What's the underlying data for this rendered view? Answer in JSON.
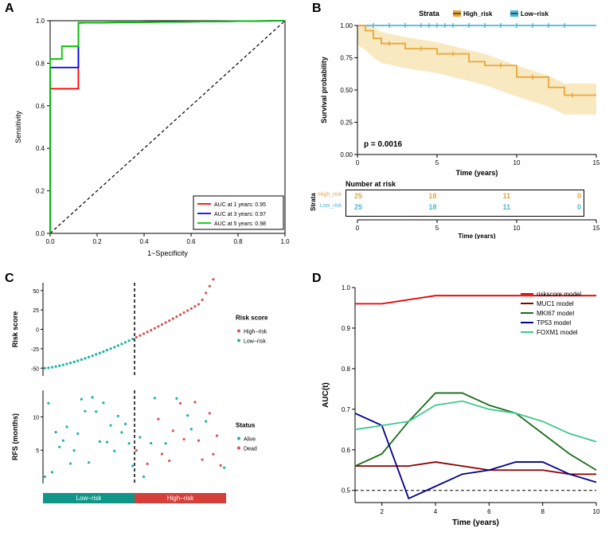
{
  "panelA": {
    "label": "A",
    "type": "roc",
    "xlabel": "1−Specificity",
    "ylabel": "Sensitivity",
    "xlim": [
      0,
      1
    ],
    "ylim": [
      0,
      1
    ],
    "ticks": [
      0.0,
      0.2,
      0.4,
      0.6,
      0.8,
      1.0
    ],
    "diagonal_color": "#000000",
    "curves": [
      {
        "color": "#ff0000",
        "label": "AUC at 1 years: 0.95",
        "points": [
          [
            0,
            0
          ],
          [
            0,
            0.68
          ],
          [
            0.12,
            0.68
          ],
          [
            0.12,
            0.99
          ],
          [
            1,
            1
          ]
        ]
      },
      {
        "color": "#0000ff",
        "label": "AUC at 3 years: 0.97",
        "points": [
          [
            0,
            0
          ],
          [
            0,
            0.78
          ],
          [
            0.12,
            0.78
          ],
          [
            0.12,
            0.99
          ],
          [
            1,
            1
          ]
        ]
      },
      {
        "color": "#00c800",
        "label": "AUC at 5 years: 0.98",
        "points": [
          [
            0,
            0
          ],
          [
            0,
            0.82
          ],
          [
            0.05,
            0.82
          ],
          [
            0.05,
            0.88
          ],
          [
            0.12,
            0.88
          ],
          [
            0.12,
            0.99
          ],
          [
            1,
            1
          ]
        ]
      }
    ]
  },
  "panelB": {
    "label": "B",
    "type": "km",
    "title": "Strata",
    "legend": [
      {
        "color": "#e9a63a",
        "label": "High_risk"
      },
      {
        "color": "#4db8d8",
        "label": "Low−risk"
      }
    ],
    "xlabel": "Time (years)",
    "ylabel": "Survival probability",
    "xlim": [
      0,
      15
    ],
    "ylim": [
      0,
      1
    ],
    "xticks": [
      0,
      5,
      10,
      15
    ],
    "yticks": [
      0.0,
      0.25,
      0.5,
      0.75,
      1.0
    ],
    "pvalue": "p = 0.0016",
    "high_ci_color": "#f5dfa6",
    "high_risk": {
      "color": "#e9a63a",
      "points": [
        [
          0,
          1.0
        ],
        [
          0.5,
          0.96
        ],
        [
          1,
          0.9
        ],
        [
          1.5,
          0.86
        ],
        [
          3,
          0.82
        ],
        [
          5,
          0.78
        ],
        [
          7,
          0.72
        ],
        [
          8,
          0.69
        ],
        [
          10,
          0.6
        ],
        [
          12,
          0.52
        ],
        [
          13,
          0.46
        ],
        [
          15,
          0.46
        ]
      ]
    },
    "low_risk": {
      "color": "#4db8d8",
      "points": [
        [
          0,
          1.0
        ],
        [
          15,
          1.0
        ]
      ]
    },
    "number_at_risk_title": "Number at risk",
    "risk_table": {
      "times": [
        0,
        5,
        10,
        15
      ],
      "high": {
        "label": "High_risk",
        "color": "#e9a63a",
        "vals": [
          25,
          18,
          11,
          0
        ]
      },
      "low": {
        "label": "Low_risk",
        "color": "#4db8d8",
        "vals": [
          25,
          18,
          11,
          0
        ]
      }
    }
  },
  "panelC": {
    "label": "C",
    "top": {
      "ylabel": "Risk score",
      "ylim": [
        -60,
        60
      ],
      "yticks": [
        -50,
        -25,
        0,
        25,
        50
      ],
      "legend_title": "Risk score",
      "legend": [
        {
          "color": "#d9534f",
          "label": "High−risk"
        },
        {
          "color": "#1fb2a6",
          "label": "Low−risk"
        }
      ],
      "low_color": "#1fb2a6",
      "high_color": "#d9534f",
      "divider_x": 0.5
    },
    "bottom": {
      "ylabel": "RFS (months)",
      "ylim": [
        0,
        14
      ],
      "yticks": [
        5,
        10
      ],
      "legend_title": "Status",
      "legend": [
        {
          "color": "#1fb2a6",
          "label": "Alive"
        },
        {
          "color": "#d9534f",
          "label": "Dead"
        }
      ],
      "alive_color": "#1fb2a6",
      "dead_color": "#d9534f"
    },
    "bar": {
      "low_color": "#0f9688",
      "low_label": "Low−risk",
      "high_color": "#d43f3a",
      "high_label": "High−risk"
    }
  },
  "panelD": {
    "label": "D",
    "type": "auc_time",
    "xlabel": "Time (years)",
    "ylabel": "AUC(t)",
    "xlim": [
      1,
      10
    ],
    "ylim": [
      0.47,
      1.0
    ],
    "xticks": [
      2,
      4,
      6,
      8,
      10
    ],
    "yticks": [
      0.5,
      0.6,
      0.7,
      0.8,
      0.9,
      1.0
    ],
    "ref_line": 0.5,
    "curves": [
      {
        "color": "#e60000",
        "label": "riskscore model",
        "points": [
          [
            1,
            0.96
          ],
          [
            2,
            0.96
          ],
          [
            3,
            0.97
          ],
          [
            4,
            0.98
          ],
          [
            5,
            0.98
          ],
          [
            6,
            0.98
          ],
          [
            7,
            0.98
          ],
          [
            8,
            0.98
          ],
          [
            9,
            0.98
          ],
          [
            10,
            0.98
          ]
        ]
      },
      {
        "color": "#8b0000",
        "label": "MUC1 model",
        "points": [
          [
            1,
            0.56
          ],
          [
            2,
            0.56
          ],
          [
            3,
            0.56
          ],
          [
            4,
            0.57
          ],
          [
            5,
            0.56
          ],
          [
            6,
            0.55
          ],
          [
            7,
            0.55
          ],
          [
            8,
            0.55
          ],
          [
            9,
            0.54
          ],
          [
            10,
            0.54
          ]
        ]
      },
      {
        "color": "#1a6b1a",
        "label": "MKI67 model",
        "points": [
          [
            1,
            0.56
          ],
          [
            2,
            0.59
          ],
          [
            3,
            0.67
          ],
          [
            4,
            0.74
          ],
          [
            5,
            0.74
          ],
          [
            6,
            0.71
          ],
          [
            7,
            0.69
          ],
          [
            8,
            0.64
          ],
          [
            9,
            0.59
          ],
          [
            10,
            0.55
          ]
        ]
      },
      {
        "color": "#00008b",
        "label": "TP53 model",
        "points": [
          [
            1,
            0.69
          ],
          [
            2,
            0.66
          ],
          [
            3,
            0.48
          ],
          [
            4,
            0.51
          ],
          [
            5,
            0.54
          ],
          [
            6,
            0.55
          ],
          [
            7,
            0.57
          ],
          [
            8,
            0.57
          ],
          [
            9,
            0.54
          ],
          [
            10,
            0.52
          ]
        ]
      },
      {
        "color": "#3cc98b",
        "label": "FOXM1 model",
        "points": [
          [
            1,
            0.65
          ],
          [
            2,
            0.66
          ],
          [
            3,
            0.67
          ],
          [
            4,
            0.71
          ],
          [
            5,
            0.72
          ],
          [
            6,
            0.7
          ],
          [
            7,
            0.69
          ],
          [
            8,
            0.67
          ],
          [
            9,
            0.64
          ],
          [
            10,
            0.62
          ]
        ]
      }
    ]
  }
}
